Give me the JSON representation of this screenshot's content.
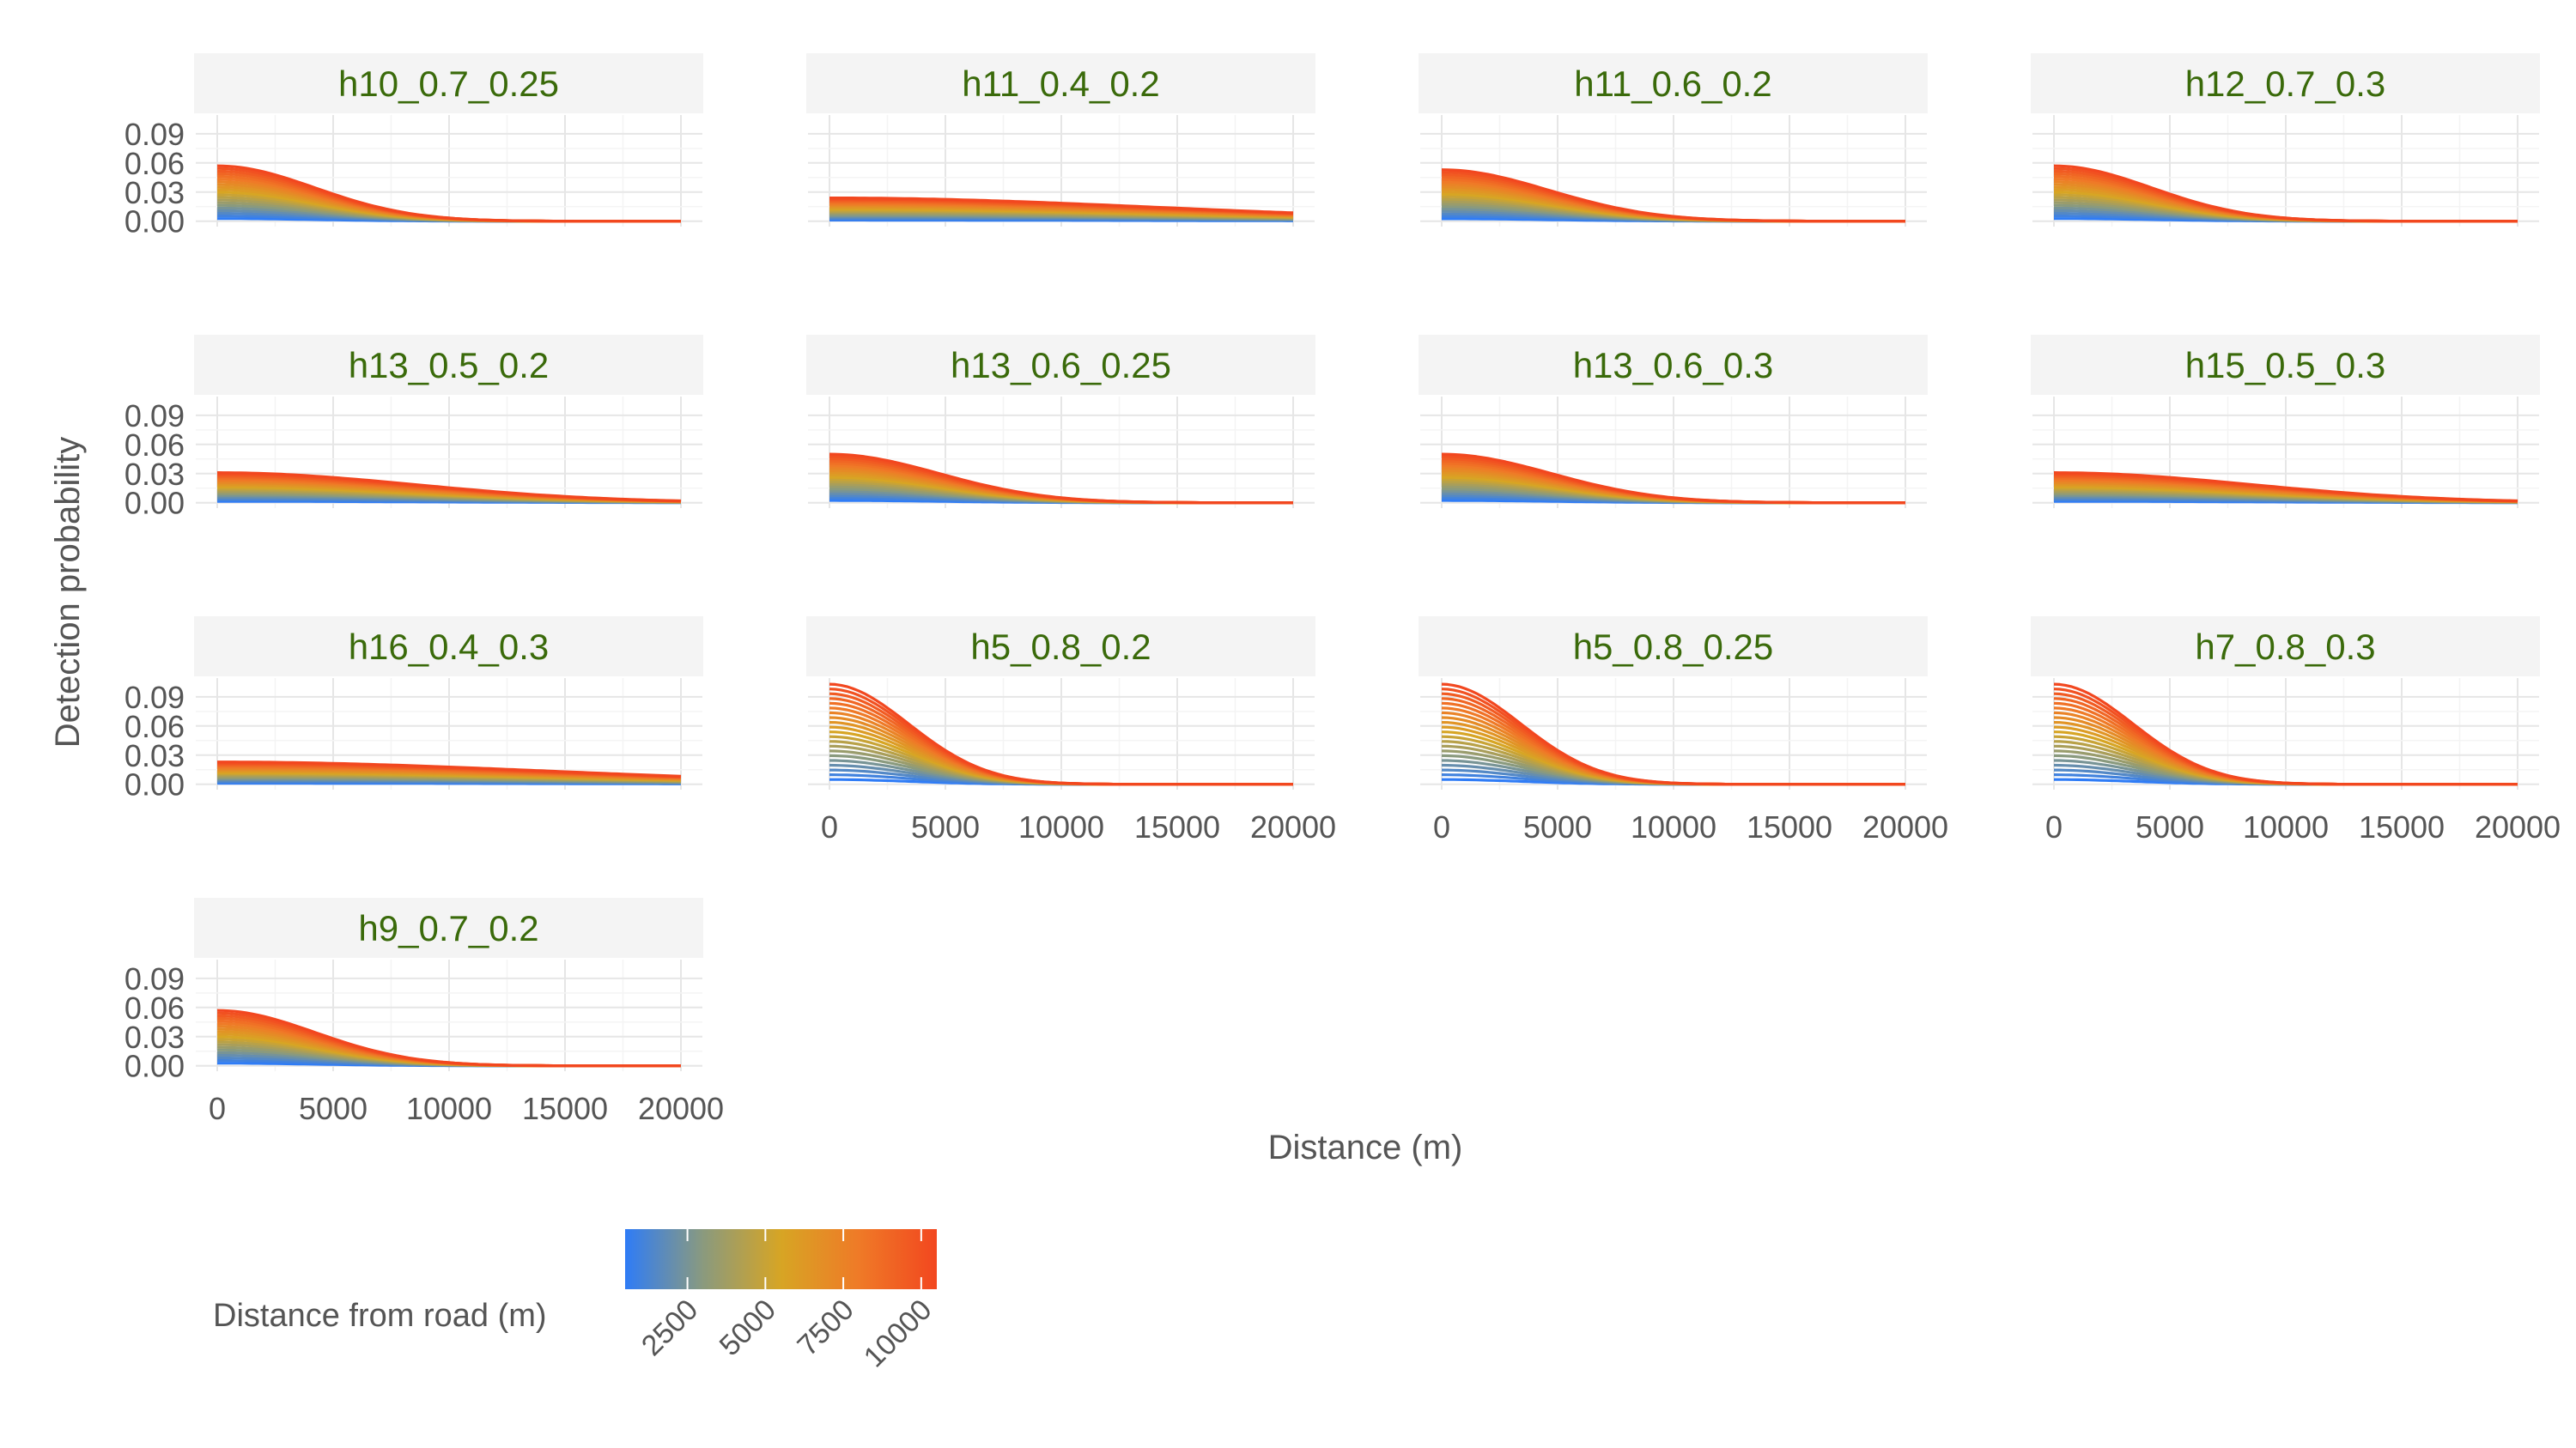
{
  "chart_data": {
    "type": "line",
    "layout": "facet-grid",
    "xlabel": "Distance (m)",
    "ylabel": "Detection probability",
    "xlim": [
      0,
      20000
    ],
    "ylim": [
      -0.002,
      0.104
    ],
    "x_ticks": [
      0,
      5000,
      10000,
      15000,
      20000
    ],
    "x_tick_labels": [
      "0",
      "5000",
      "10000",
      "15000",
      "20000"
    ],
    "y_ticks": [
      0.0,
      0.03,
      0.06,
      0.09
    ],
    "y_tick_labels": [
      "0.00",
      "0.03",
      "0.06",
      "0.09"
    ],
    "grid": true,
    "legend": {
      "title": "Distance from road (m)",
      "type": "colorbar",
      "placement": "bottom",
      "range": [
        500,
        10500
      ],
      "ticks": [
        2500,
        5000,
        7500,
        10000
      ],
      "tick_labels": [
        "2500",
        "5000",
        "7500",
        "10000"
      ],
      "colors": [
        "#2f7cf6",
        "#8a9a7e",
        "#d7a524",
        "#ef7a27",
        "#f2471f"
      ]
    },
    "road_distances": [
      500,
      1000,
      1500,
      2000,
      2500,
      3000,
      3500,
      4000,
      4500,
      5000,
      5500,
      6000,
      6500,
      7000,
      7500,
      8000,
      8500,
      9000,
      9500,
      10000,
      10500
    ],
    "x": [
      0,
      1000,
      2000,
      3000,
      4000,
      5000,
      6000,
      7000,
      8000,
      9000,
      10000,
      11000,
      12000,
      13000,
      14000,
      15000,
      16000,
      17000,
      18000,
      19000,
      20000
    ],
    "panels": [
      {
        "title": "h10_0.7_0.25",
        "shape": "half-normal",
        "max_value": 0.057,
        "sigma": 4200,
        "x_axis_labels": false
      },
      {
        "title": "h11_0.4_0.2",
        "shape": "half-normal",
        "max_value": 0.024,
        "sigma": 14000,
        "x_axis_labels": false
      },
      {
        "title": "h11_0.6_0.2",
        "shape": "half-normal",
        "max_value": 0.053,
        "sigma": 4600,
        "x_axis_labels": false
      },
      {
        "title": "h12_0.7_0.3",
        "shape": "half-normal",
        "max_value": 0.057,
        "sigma": 4200,
        "x_axis_labels": false
      },
      {
        "title": "h13_0.5_0.2",
        "shape": "half-normal",
        "max_value": 0.031,
        "sigma": 8500,
        "x_axis_labels": false
      },
      {
        "title": "h13_0.6_0.25",
        "shape": "half-normal",
        "max_value": 0.05,
        "sigma": 4700,
        "x_axis_labels": false
      },
      {
        "title": "h13_0.6_0.3",
        "shape": "half-normal",
        "max_value": 0.05,
        "sigma": 4700,
        "x_axis_labels": false
      },
      {
        "title": "h15_0.5_0.3",
        "shape": "half-normal",
        "max_value": 0.031,
        "sigma": 8500,
        "x_axis_labels": false
      },
      {
        "title": "h16_0.4_0.3",
        "shape": "half-normal",
        "max_value": 0.023,
        "sigma": 14000,
        "x_axis_labels": false
      },
      {
        "title": "h5_0.8_0.2",
        "shape": "half-normal",
        "max_value": 0.103,
        "sigma": 3400,
        "x_axis_labels": true
      },
      {
        "title": "h5_0.8_0.25",
        "shape": "half-normal",
        "max_value": 0.103,
        "sigma": 3400,
        "x_axis_labels": true
      },
      {
        "title": "h7_0.8_0.3",
        "shape": "half-normal",
        "max_value": 0.103,
        "sigma": 3400,
        "x_axis_labels": true
      },
      {
        "title": "h9_0.7_0.2",
        "shape": "half-normal",
        "max_value": 0.057,
        "sigma": 4200,
        "x_axis_labels": true
      }
    ]
  }
}
